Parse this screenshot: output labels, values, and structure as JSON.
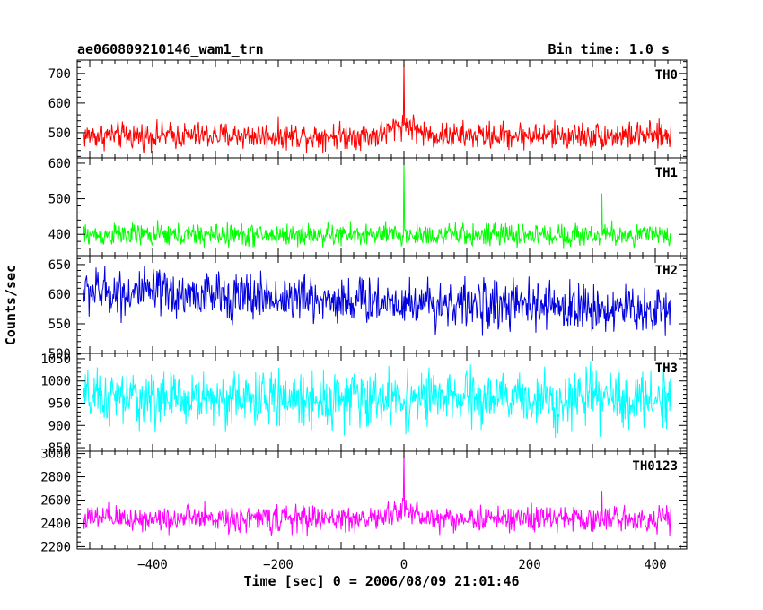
{
  "chart_data": {
    "type": "line",
    "title_left": "ae060809210146_wam1_trn",
    "title_right": "Bin time: 1.0 s",
    "xlabel": "Time [sec] 0 = 2006/08/09 21:01:46",
    "ylabel": "Counts/sec",
    "xlim": [
      -520,
      450
    ],
    "x_start": -510,
    "x_end": 425,
    "x_step": 1,
    "xticks": [
      -400,
      -200,
      0,
      200,
      400
    ],
    "panels": [
      {
        "name": "TH0",
        "color": "#ff0000",
        "ylim": [
          415,
          745
        ],
        "yticks": [
          500,
          600,
          700
        ],
        "baseline": 490,
        "sigma": 28,
        "spike": {
          "x": 0,
          "value": 745
        },
        "bump": {
          "x": 0,
          "width": 25,
          "height": 40
        }
      },
      {
        "name": "TH1",
        "color": "#00ff00",
        "ylim": [
          340,
          615
        ],
        "yticks": [
          400,
          500,
          600
        ],
        "baseline": 398,
        "sigma": 20,
        "spike": {
          "x": 0,
          "value": 615
        },
        "spike2": {
          "x": 315,
          "value": 515
        }
      },
      {
        "name": "TH2",
        "color": "#0000e0",
        "ylim": [
          500,
          665
        ],
        "yticks": [
          500,
          550,
          600,
          650
        ],
        "baseline_start": 605,
        "baseline_end": 572,
        "sigma": 25
      },
      {
        "name": "TH3",
        "color": "#00ffff",
        "ylim": [
          842,
          1062
        ],
        "yticks": [
          850,
          900,
          950,
          1000,
          1050
        ],
        "baseline": 960,
        "sigma": 38
      },
      {
        "name": "TH0123",
        "color": "#ff00ff",
        "ylim": [
          2180,
          3020
        ],
        "yticks": [
          2200,
          2400,
          2600,
          2800,
          3000
        ],
        "baseline": 2440,
        "sigma": 70,
        "spike": {
          "x": 0,
          "value": 3020
        },
        "spike2": {
          "x": 315,
          "value": 2680
        },
        "bump": {
          "x": 0,
          "width": 25,
          "height": 80
        }
      }
    ]
  }
}
